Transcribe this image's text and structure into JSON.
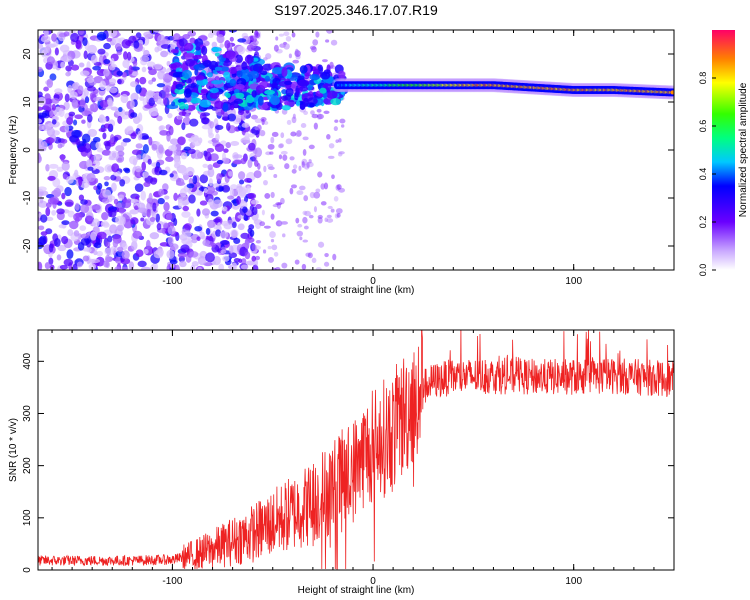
{
  "title": "S197.2025.346.17.07.R19",
  "chart_data": [
    {
      "type": "heatmap",
      "xlabel": "Height of straight line (km)",
      "ylabel": "Frequency (Hz)",
      "xlim": [
        -167,
        150
      ],
      "ylim": [
        -25,
        25
      ],
      "xticks": [
        -100,
        0,
        100
      ],
      "yticks": [
        -20,
        -10,
        0,
        10,
        20
      ],
      "colorbar": {
        "label": "Normalized spectral amplitude",
        "range": [
          0,
          1
        ],
        "ticks": [
          "0.0",
          "0.2",
          "0.4",
          "0.6",
          "0.8"
        ]
      },
      "description_series": [
        {
          "name": "signal ridge center (Hz)",
          "x": [
            -100,
            -80,
            -60,
            -40,
            -20,
            0,
            20,
            40,
            60,
            80,
            100,
            120,
            148
          ],
          "values": [
            15,
            15,
            14,
            13,
            13.5,
            13.5,
            13.5,
            13.5,
            13.5,
            13,
            12.5,
            12.5,
            12
          ]
        }
      ]
    },
    {
      "type": "line",
      "xlabel": "Height of straight line (km)",
      "ylabel": "SNR (10 * v/v)",
      "xlim": [
        -167,
        150
      ],
      "ylim": [
        0,
        460
      ],
      "xticks": [
        -100,
        0,
        100
      ],
      "yticks": [
        0,
        100,
        200,
        300,
        400
      ],
      "series": [
        {
          "name": "SNR",
          "color": "#ee2222",
          "x": [
            -167,
            -140,
            -120,
            -100,
            -90,
            -80,
            -70,
            -60,
            -50,
            -40,
            -30,
            -20,
            -10,
            -5,
            0,
            10,
            15,
            20,
            25,
            30,
            40,
            60,
            80,
            100,
            120,
            140,
            150
          ],
          "values": [
            18,
            18,
            18,
            20,
            28,
            40,
            55,
            70,
            90,
            110,
            130,
            160,
            190,
            220,
            240,
            265,
            295,
            330,
            350,
            362,
            370,
            372,
            370,
            370,
            372,
            368,
            365
          ]
        }
      ]
    }
  ]
}
